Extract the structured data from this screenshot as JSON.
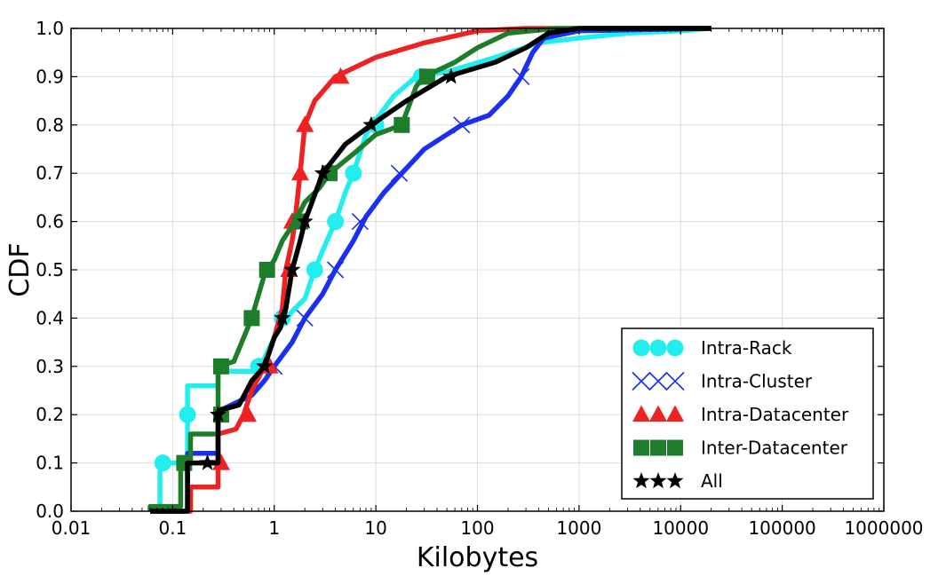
{
  "chart_data": {
    "type": "line",
    "title": "",
    "xlabel": "Kilobytes",
    "ylabel": "CDF",
    "xscale": "log",
    "xlim": [
      0.01,
      1000000
    ],
    "ylim": [
      0,
      1.0
    ],
    "grid": true,
    "legend_position": "bottom-right",
    "x_ticks": [
      0.01,
      0.1,
      1,
      10,
      100,
      1000,
      10000,
      100000,
      1000000
    ],
    "x_tick_labels": [
      "0.01",
      "0.1",
      "1",
      "10",
      "100",
      "1000",
      "10000",
      "100000",
      "1000000"
    ],
    "y_ticks": [
      0,
      0.1,
      0.2,
      0.3,
      0.4,
      0.5,
      0.6,
      0.7,
      0.8,
      0.9,
      1.0
    ],
    "y_tick_labels": [
      "0.0",
      "0.1",
      "0.2",
      "0.3",
      "0.4",
      "0.5",
      "0.6",
      "0.7",
      "0.8",
      "0.9",
      "1.0"
    ],
    "series": [
      {
        "name": "Intra-Rack",
        "color": "#22eeee",
        "marker": "circle",
        "points": [
          [
            0.06,
            0.0
          ],
          [
            0.07,
            0.01
          ],
          [
            0.075,
            0.01
          ],
          [
            0.075,
            0.1
          ],
          [
            0.14,
            0.1
          ],
          [
            0.14,
            0.26
          ],
          [
            0.28,
            0.26
          ],
          [
            0.28,
            0.29
          ],
          [
            0.7,
            0.29
          ],
          [
            0.9,
            0.34
          ],
          [
            1.2,
            0.39
          ],
          [
            1.6,
            0.42
          ],
          [
            2.0,
            0.44
          ],
          [
            2.5,
            0.5
          ],
          [
            3.0,
            0.54
          ],
          [
            4.0,
            0.6
          ],
          [
            5.0,
            0.66
          ],
          [
            6.0,
            0.7
          ],
          [
            8.0,
            0.78
          ],
          [
            10.0,
            0.81
          ],
          [
            15.0,
            0.86
          ],
          [
            25.0,
            0.9
          ],
          [
            50.0,
            0.91
          ],
          [
            150.0,
            0.94
          ],
          [
            400.0,
            0.97
          ],
          [
            1000.0,
            0.98
          ],
          [
            3000.0,
            0.99
          ],
          [
            10000.0,
            0.995
          ],
          [
            20000.0,
            1.0
          ]
        ],
        "markers": [
          [
            0.08,
            0.1
          ],
          [
            0.14,
            0.2
          ],
          [
            0.7,
            0.3
          ],
          [
            1.2,
            0.4
          ],
          [
            2.5,
            0.5
          ],
          [
            4.0,
            0.6
          ],
          [
            6.0,
            0.7
          ],
          [
            10.0,
            0.8
          ],
          [
            28.0,
            0.9
          ]
        ]
      },
      {
        "name": "Intra-Cluster",
        "color": "#1a2ff0",
        "marker": "x",
        "points": [
          [
            0.06,
            0.0
          ],
          [
            0.14,
            0.0
          ],
          [
            0.14,
            0.12
          ],
          [
            0.28,
            0.12
          ],
          [
            0.28,
            0.2
          ],
          [
            0.3,
            0.21
          ],
          [
            0.6,
            0.24
          ],
          [
            0.8,
            0.27
          ],
          [
            1.0,
            0.3
          ],
          [
            1.5,
            0.35
          ],
          [
            2.0,
            0.4
          ],
          [
            3.0,
            0.45
          ],
          [
            4.0,
            0.5
          ],
          [
            6.0,
            0.56
          ],
          [
            8.0,
            0.61
          ],
          [
            12.0,
            0.66
          ],
          [
            18.0,
            0.7
          ],
          [
            30.0,
            0.75
          ],
          [
            70.0,
            0.8
          ],
          [
            130.0,
            0.82
          ],
          [
            200.0,
            0.86
          ],
          [
            270.0,
            0.9
          ],
          [
            350.0,
            0.95
          ],
          [
            450.0,
            0.98
          ],
          [
            1000.0,
            0.995
          ],
          [
            20000.0,
            1.0
          ]
        ],
        "markers": [
          [
            1.0,
            0.3
          ],
          [
            2.0,
            0.4
          ],
          [
            4.0,
            0.5
          ],
          [
            7.0,
            0.6
          ],
          [
            17.0,
            0.7
          ],
          [
            70.0,
            0.8
          ],
          [
            270.0,
            0.9
          ]
        ]
      },
      {
        "name": "Intra-Datacenter",
        "color": "#ee2222",
        "marker": "triangle",
        "points": [
          [
            0.06,
            0.0
          ],
          [
            0.15,
            0.0
          ],
          [
            0.15,
            0.05
          ],
          [
            0.28,
            0.05
          ],
          [
            0.28,
            0.16
          ],
          [
            0.42,
            0.17
          ],
          [
            0.5,
            0.2
          ],
          [
            0.6,
            0.25
          ],
          [
            0.8,
            0.3
          ],
          [
            1.0,
            0.36
          ],
          [
            1.2,
            0.42
          ],
          [
            1.3,
            0.5
          ],
          [
            1.5,
            0.56
          ],
          [
            1.6,
            0.6
          ],
          [
            1.8,
            0.7
          ],
          [
            2.0,
            0.8
          ],
          [
            2.5,
            0.85
          ],
          [
            4.0,
            0.9
          ],
          [
            10.0,
            0.94
          ],
          [
            30.0,
            0.97
          ],
          [
            100.0,
            0.995
          ],
          [
            300.0,
            1.0
          ],
          [
            20000.0,
            1.0
          ]
        ],
        "markers": [
          [
            0.3,
            0.1
          ],
          [
            0.55,
            0.2
          ],
          [
            0.9,
            0.3
          ],
          [
            1.4,
            0.5
          ],
          [
            1.5,
            0.6
          ],
          [
            1.8,
            0.7
          ],
          [
            2.0,
            0.8
          ],
          [
            4.5,
            0.9
          ]
        ]
      },
      {
        "name": "Inter-Datacenter",
        "color": "#1e7d2a",
        "marker": "square",
        "points": [
          [
            0.06,
            0.0
          ],
          [
            0.06,
            0.01
          ],
          [
            0.12,
            0.01
          ],
          [
            0.12,
            0.1
          ],
          [
            0.15,
            0.1
          ],
          [
            0.15,
            0.16
          ],
          [
            0.28,
            0.16
          ],
          [
            0.28,
            0.3
          ],
          [
            0.4,
            0.31
          ],
          [
            0.6,
            0.4
          ],
          [
            0.8,
            0.49
          ],
          [
            1.0,
            0.52
          ],
          [
            1.2,
            0.56
          ],
          [
            1.6,
            0.6
          ],
          [
            2.0,
            0.64
          ],
          [
            2.8,
            0.67
          ],
          [
            3.5,
            0.7
          ],
          [
            6.0,
            0.74
          ],
          [
            10.0,
            0.78
          ],
          [
            18.0,
            0.8
          ],
          [
            25.0,
            0.88
          ],
          [
            30.0,
            0.9
          ],
          [
            60.0,
            0.93
          ],
          [
            100.0,
            0.96
          ],
          [
            200.0,
            0.99
          ],
          [
            600.0,
            1.0
          ],
          [
            20000.0,
            1.0
          ]
        ],
        "markers": [
          [
            0.13,
            0.1
          ],
          [
            0.3,
            0.2
          ],
          [
            0.3,
            0.3
          ],
          [
            0.6,
            0.4
          ],
          [
            0.85,
            0.5
          ],
          [
            1.8,
            0.6
          ],
          [
            3.5,
            0.7
          ],
          [
            18.0,
            0.8
          ],
          [
            32.0,
            0.9
          ]
        ]
      },
      {
        "name": "All",
        "color": "#000000",
        "marker": "star",
        "points": [
          [
            0.06,
            0.0
          ],
          [
            0.14,
            0.0
          ],
          [
            0.14,
            0.1
          ],
          [
            0.28,
            0.1
          ],
          [
            0.28,
            0.2
          ],
          [
            0.3,
            0.21
          ],
          [
            0.45,
            0.22
          ],
          [
            0.6,
            0.27
          ],
          [
            0.8,
            0.3
          ],
          [
            1.0,
            0.36
          ],
          [
            1.15,
            0.38
          ],
          [
            1.3,
            0.42
          ],
          [
            1.5,
            0.5
          ],
          [
            1.8,
            0.56
          ],
          [
            2.0,
            0.6
          ],
          [
            3.0,
            0.7
          ],
          [
            5.0,
            0.76
          ],
          [
            9.0,
            0.8
          ],
          [
            20.0,
            0.85
          ],
          [
            50.0,
            0.9
          ],
          [
            150.0,
            0.93
          ],
          [
            300.0,
            0.96
          ],
          [
            500.0,
            0.99
          ],
          [
            1000.0,
            1.0
          ],
          [
            20000.0,
            1.0
          ]
        ],
        "markers": [
          [
            0.22,
            0.1
          ],
          [
            0.28,
            0.2
          ],
          [
            0.8,
            0.3
          ],
          [
            1.2,
            0.4
          ],
          [
            1.5,
            0.5
          ],
          [
            2.0,
            0.6
          ],
          [
            3.0,
            0.7
          ],
          [
            9.0,
            0.8
          ],
          [
            55.0,
            0.9
          ]
        ]
      }
    ]
  }
}
